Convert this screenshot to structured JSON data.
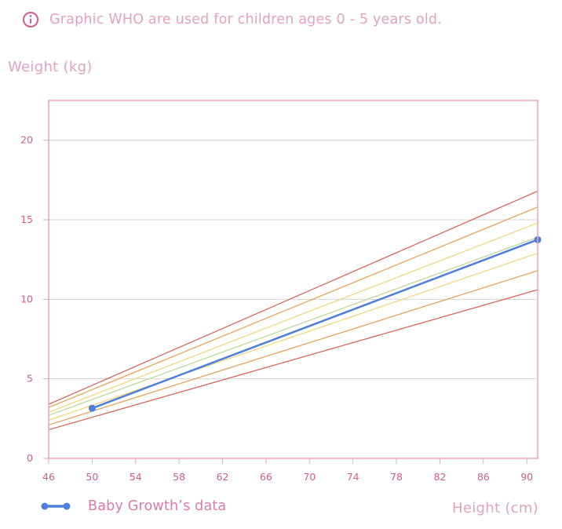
{
  "notice": {
    "icon": "info-icon",
    "text": "Graphic WHO are used for children ages 0 - 5 years old."
  },
  "colors": {
    "accent_pink": "#e3a2c0",
    "tick_pink": "#d35c8a",
    "frame_pink": "#e6a7c3",
    "grid": "#d6d6d6",
    "baby_series": "#4f7fdb",
    "outer_percentile": "#d9685f",
    "mid_percentile": "#e9a25a",
    "inner_percentile": "#f0d77e",
    "median": "#bcd99b"
  },
  "chart_data": {
    "type": "line",
    "xlabel": "Height (cm)",
    "ylabel": "Weight (kg)",
    "xlim": [
      46,
      91
    ],
    "ylim": [
      0,
      22.5
    ],
    "x_ticks": [
      "46",
      "50",
      "54",
      "58",
      "62",
      "66",
      "70",
      "74",
      "78",
      "82",
      "86",
      "90"
    ],
    "y_ticks": [
      "0",
      "5",
      "10",
      "15",
      "20"
    ],
    "grid": true,
    "legend": "bottom-left",
    "reference_lines": [
      {
        "x": [
          46,
          91
        ],
        "y": [
          1.8,
          10.6
        ],
        "color": "#d9685f"
      },
      {
        "x": [
          46,
          91
        ],
        "y": [
          2.1,
          11.8
        ],
        "color": "#e9a25a"
      },
      {
        "x": [
          46,
          91
        ],
        "y": [
          2.4,
          12.9
        ],
        "color": "#f0d77e"
      },
      {
        "x": [
          46,
          91
        ],
        "y": [
          2.7,
          13.9
        ],
        "color": "#bcd99b"
      },
      {
        "x": [
          46,
          91
        ],
        "y": [
          2.9,
          14.8
        ],
        "color": "#f0d77e"
      },
      {
        "x": [
          46,
          91
        ],
        "y": [
          3.2,
          15.8
        ],
        "color": "#e9a25a"
      },
      {
        "x": [
          46,
          91
        ],
        "y": [
          3.4,
          16.8
        ],
        "color": "#d9685f"
      }
    ],
    "series": [
      {
        "name": "Baby Growth’s data",
        "x": [
          50,
          91
        ],
        "y": [
          3.15,
          13.75
        ],
        "color": "#4f7fdb"
      }
    ]
  }
}
